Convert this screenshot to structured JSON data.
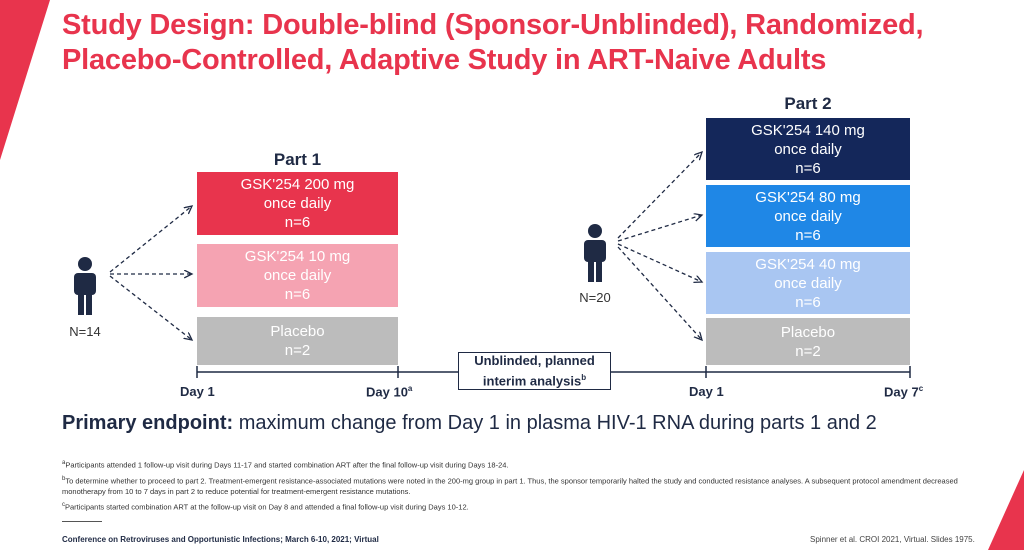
{
  "title": "Study Design: Double-blind (Sponsor-Unblinded), Randomized, Placebo-Controlled, Adaptive Study in ART-Naive Adults",
  "part1": {
    "label": "Part 1",
    "n_label": "N=14",
    "arms": [
      {
        "line1": "GSK'254 200 mg",
        "line2": "once daily",
        "line3": "n=6",
        "color": "#e8344d"
      },
      {
        "line1": "GSK'254 10 mg",
        "line2": "once daily",
        "line3": "n=6",
        "color": "#f5a3b2"
      },
      {
        "line1": "Placebo",
        "line2": "n=2",
        "line3": "",
        "color": "#bcbcbc"
      }
    ],
    "day_start": "Day 1",
    "day_end": "Day 10",
    "day_end_sup": "a"
  },
  "part2": {
    "label": "Part 2",
    "n_label": "N=20",
    "arms": [
      {
        "line1": "GSK'254 140 mg",
        "line2": "once daily",
        "line3": "n=6",
        "color": "#14275a"
      },
      {
        "line1": "GSK'254 80 mg",
        "line2": "once daily",
        "line3": "n=6",
        "color": "#1f87e6"
      },
      {
        "line1": "GSK'254 40 mg",
        "line2": "once daily",
        "line3": "n=6",
        "color": "#a9c6f2"
      },
      {
        "line1": "Placebo",
        "line2": "n=2",
        "line3": "",
        "color": "#bcbcbc"
      }
    ],
    "day_start": "Day 1",
    "day_end": "Day 7",
    "day_end_sup": "c"
  },
  "interim": {
    "line1": "Unblinded, planned",
    "line2": "interim analysis",
    "sup": "b"
  },
  "endpoint": {
    "label": "Primary endpoint:",
    "text": " maximum change from Day 1 in plasma HIV-1 RNA during parts 1 and 2"
  },
  "footnotes": {
    "a": {
      "mark": "a",
      "text": "Participants attended 1 follow-up visit during Days 11-17 and started combination ART after the final follow-up visit during Days 18-24."
    },
    "b": {
      "mark": "b",
      "text": "To determine whether to proceed to part 2. Treatment-emergent resistance-associated mutations were noted in the 200-mg group in part 1. Thus, the sponsor temporarily halted the study and conducted resistance analyses. A subsequent protocol amendment decreased monotherapy from 10 to 7 days in part 2 to reduce potential for treatment-emergent resistance mutations."
    },
    "c": {
      "mark": "c",
      "text": "Participants started combination ART at the follow-up visit on Day 8 and attended a final follow-up visit during Days 10-12."
    }
  },
  "conference": "Conference on Retroviruses and Opportunistic Infections; March 6-10, 2021; Virtual",
  "citation": "Spinner et al. CROI 2021, Virtual. Slides 1975.",
  "colors": {
    "accent": "#e8344d",
    "navy": "#1f2a44",
    "person": "#1f2a44"
  }
}
